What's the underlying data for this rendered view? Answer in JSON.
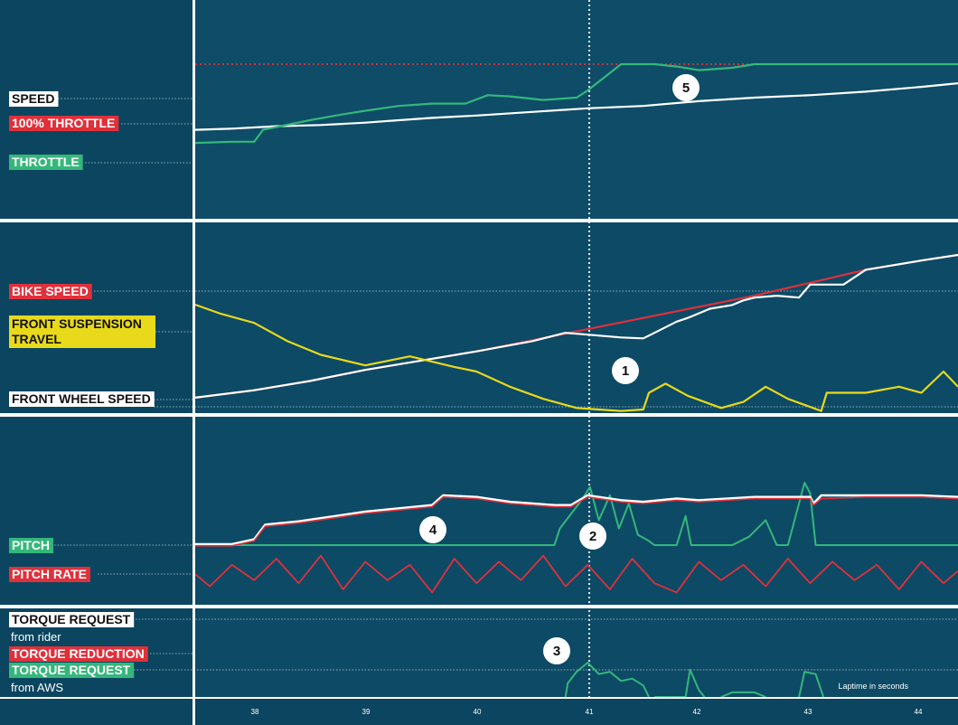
{
  "chart_data": [
    {
      "type": "line",
      "title": "",
      "xlabel": "",
      "xlim": [
        37.47,
        44.33
      ],
      "series": [
        {
          "name": "SPEED",
          "color": "#ffffff",
          "x": [
            37.47,
            37.8,
            38.2,
            38.6,
            39.0,
            39.3,
            39.6,
            40.0,
            40.5,
            41.0,
            41.5,
            42.0,
            42.5,
            43.0,
            43.5,
            44.0,
            44.33
          ],
          "values": [
            45,
            46,
            48,
            49,
            51,
            53,
            55,
            57,
            60,
            63,
            65,
            69,
            72,
            74,
            77,
            81,
            84
          ]
        },
        {
          "name": "100% THROTTLE",
          "color": "#e0303a",
          "x": [
            37.47,
            44.33
          ],
          "values": [
            100,
            100
          ]
        },
        {
          "name": "THROTTLE",
          "color": "#34b77a",
          "x": [
            37.47,
            37.8,
            38.0,
            38.08,
            38.5,
            38.8,
            39.0,
            39.3,
            39.6,
            39.9,
            40.1,
            40.3,
            40.6,
            40.9,
            41.0,
            41.3,
            41.6,
            41.8,
            42.0,
            42.3,
            42.5,
            43.0,
            43.5,
            44.0,
            44.33
          ],
          "values": [
            34,
            35,
            35,
            45,
            53,
            58,
            61,
            65,
            67,
            67,
            74,
            73,
            70,
            72,
            78,
            100,
            100,
            98,
            95,
            97,
            100,
            100,
            100,
            100,
            100
          ]
        }
      ]
    },
    {
      "type": "line",
      "title": "",
      "xlabel": "",
      "xlim": [
        37.47,
        44.33
      ],
      "series": [
        {
          "name": "BIKE SPEED",
          "color": "#e0303a",
          "x": [
            37.47,
            38.0,
            38.5,
            39.0,
            39.5,
            40.0,
            40.5,
            41.0,
            41.5,
            42.0,
            42.5,
            43.0,
            43.5,
            44.0,
            44.33
          ],
          "values": [
            2,
            10,
            20,
            32,
            42,
            52,
            64,
            76,
            88,
            100,
            112,
            126,
            140,
            150,
            156
          ]
        },
        {
          "name": "FRONT WHEEL SPEED",
          "color": "#ffffff",
          "x": [
            37.47,
            38.0,
            38.5,
            39.0,
            39.5,
            40.0,
            40.5,
            40.8,
            41.0,
            41.3,
            41.5,
            41.6,
            41.8,
            41.9,
            42.1,
            42.3,
            42.4,
            42.5,
            42.7,
            42.9,
            43.0,
            43.3,
            43.5,
            44.0,
            44.33
          ],
          "values": [
            2,
            10,
            20,
            32,
            42,
            52,
            63,
            72,
            70,
            67,
            66,
            72,
            84,
            88,
            98,
            102,
            107,
            110,
            112,
            110,
            124,
            124,
            140,
            150,
            156
          ]
        },
        {
          "name": "FRONT SUSPENSION TRAVEL",
          "color": "#e8d91a",
          "x": [
            37.47,
            37.7,
            38.0,
            38.3,
            38.6,
            39.0,
            39.4,
            39.8,
            40.0,
            40.3,
            40.6,
            40.9,
            41.1,
            41.3,
            41.5,
            41.55,
            41.7,
            41.9,
            42.2,
            42.4,
            42.6,
            42.8,
            43.1,
            43.15,
            43.5,
            43.8,
            44.0,
            44.2,
            44.33
          ],
          "values": [
            72,
            66,
            60,
            48,
            39,
            32,
            38,
            31,
            28,
            18,
            10,
            4,
            3,
            2,
            3,
            14,
            20,
            12,
            4,
            8,
            18,
            10,
            2,
            14,
            14,
            18,
            14,
            28,
            18
          ]
        }
      ]
    },
    {
      "type": "line",
      "title": "",
      "xlabel": "",
      "xlim": [
        37.47,
        44.33
      ],
      "series": [
        {
          "name": "PITCH",
          "color": "#34b77a",
          "x": [
            37.47,
            40.7,
            40.75,
            40.85,
            40.95,
            41.02,
            41.1,
            41.2,
            41.28,
            41.37,
            41.45,
            41.55,
            41.6,
            41.8,
            41.88,
            41.93,
            42.0,
            42.3,
            42.45,
            42.6,
            42.7,
            42.8,
            42.95,
            43.0,
            43.05,
            43.12,
            44.33
          ],
          "values": [
            0,
            0,
            8,
            15,
            22,
            28,
            12,
            24,
            8,
            20,
            5,
            2,
            0,
            0,
            14,
            0,
            0,
            0,
            4,
            12,
            0,
            0,
            30,
            25,
            0,
            0,
            0
          ]
        },
        {
          "name": "PITCH RATE",
          "color": "#e0303a",
          "x": [
            37.47,
            37.6,
            37.8,
            38.0,
            38.2,
            38.4,
            38.6,
            38.8,
            39.0,
            39.2,
            39.4,
            39.6,
            39.8,
            40.0,
            40.2,
            40.4,
            40.6,
            40.8,
            41.0,
            41.2,
            41.4,
            41.6,
            41.8,
            42.0,
            42.2,
            42.4,
            42.6,
            42.8,
            43.0,
            43.2,
            43.4,
            43.6,
            43.8,
            44.0,
            44.2,
            44.33
          ],
          "values": [
            0,
            -4,
            3,
            -2,
            5,
            -3,
            6,
            -5,
            4,
            -2,
            3,
            -6,
            5,
            -3,
            4,
            -2,
            6,
            -4,
            3,
            -5,
            5,
            -3,
            -6,
            4,
            -2,
            3,
            -4,
            5,
            -3,
            4,
            -2,
            3,
            -5,
            4,
            -3,
            1
          ]
        }
      ]
    },
    {
      "type": "line",
      "title": "",
      "xlabel": "Laptime in seconds",
      "xlim": [
        37.47,
        44.33
      ],
      "x_ticks": [
        "38",
        "39",
        "40",
        "41",
        "42",
        "43",
        "44"
      ],
      "series": [
        {
          "name": "TORQUE REQUEST from rider",
          "color": "#ffffff",
          "x": [
            37.47,
            37.8,
            38.0,
            38.1,
            38.4,
            38.8,
            39.0,
            39.3,
            39.6,
            39.7,
            40.0,
            40.3,
            40.7,
            40.85,
            41.0,
            41.3,
            41.5,
            41.8,
            42.0,
            42.5,
            43.0,
            43.03,
            43.1,
            43.5,
            44.0,
            44.33
          ],
          "values": [
            70,
            70,
            73,
            82,
            84,
            88,
            90,
            92,
            94,
            100,
            99,
            96,
            94,
            94,
            100,
            97,
            96,
            98,
            97,
            99,
            99,
            95,
            100,
            100,
            100,
            99
          ]
        },
        {
          "name": "TORQUE REDUCTION",
          "color": "#e0303a",
          "x": [
            37.47,
            37.8,
            38.0,
            38.1,
            38.4,
            38.8,
            39.0,
            39.3,
            39.6,
            39.7,
            40.0,
            40.3,
            40.7,
            40.85,
            41.0,
            41.3,
            41.5,
            41.8,
            42.0,
            42.5,
            43.0,
            43.03,
            43.1,
            43.5,
            44.0,
            44.33
          ],
          "values": [
            69,
            69,
            72,
            81,
            83,
            87,
            89,
            91,
            93,
            99,
            98,
            95,
            93,
            93,
            99,
            96,
            95,
            97,
            96,
            98,
            98,
            94,
            98,
            99,
            99,
            98
          ]
        },
        {
          "name": "TORQUE REQUEST from AWS",
          "color": "#34b77a",
          "x": [
            40.8,
            40.82,
            40.9,
            41.0,
            41.1,
            41.2,
            41.3,
            41.4,
            41.5,
            41.55,
            41.6,
            41.6,
            41.88,
            41.92,
            42.0,
            42.05,
            42.2,
            42.2,
            42.3,
            42.5,
            42.6,
            42.6,
            42.9,
            42.95,
            43.05,
            43.12
          ],
          "values": [
            0,
            12,
            22,
            30,
            20,
            22,
            14,
            16,
            10,
            0,
            null,
            0,
            0,
            24,
            6,
            0,
            null,
            0,
            4,
            4,
            0,
            null,
            0,
            22,
            20,
            0
          ]
        }
      ]
    }
  ],
  "labels": {
    "speed": "SPEED",
    "throttle_100": "100% THROTTLE",
    "throttle": "THROTTLE",
    "bike_speed": "BIKE SPEED",
    "front_susp_1": "FRONT SUSPENSION",
    "front_susp_2": "TRAVEL",
    "front_wheel": "FRONT WHEEL SPEED",
    "pitch": "PITCH",
    "pitch_rate": "PITCH RATE",
    "torque_rider": "TORQUE REQUEST",
    "torque_rider_sub": "from rider",
    "torque_reduction": "TORQUE REDUCTION",
    "torque_aws": "TORQUE REQUEST",
    "torque_aws_sub": "from AWS",
    "laptime": "Laptime in seconds"
  },
  "markers": [
    "5",
    "1",
    "4",
    "2",
    "3"
  ],
  "colors": {
    "background": "#0b4560",
    "white": "#ffffff",
    "red": "#e0303a",
    "green": "#34b77a",
    "yellow": "#e8d91a"
  }
}
